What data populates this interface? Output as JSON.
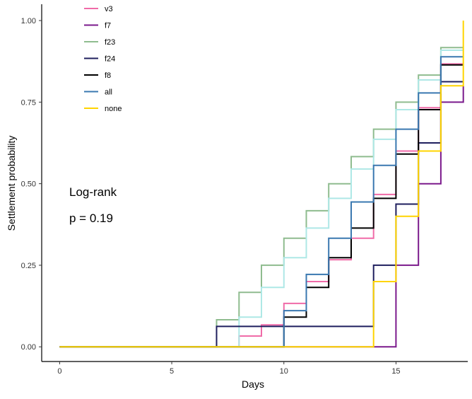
{
  "chart_data": {
    "type": "line",
    "subtype": "step",
    "xlabel": "Days",
    "ylabel": "Settlement probability",
    "xlim": [
      -0.8,
      18.2
    ],
    "ylim": [
      -0.045,
      1.05
    ],
    "xticks": [
      0,
      5,
      10,
      15
    ],
    "yticks": [
      0.0,
      0.25,
      0.5,
      0.75,
      1.0
    ],
    "xtick_labels": [
      "0",
      "5",
      "10",
      "15"
    ],
    "ytick_labels": [
      "0.00",
      "0.25",
      "0.50",
      "0.75",
      "1.00"
    ],
    "grid": false,
    "legend_position": "top-left",
    "annotations": [
      "Log-rank",
      "p = 0.19"
    ],
    "series": [
      {
        "name": "v3",
        "color": "#f06ba8",
        "x": [
          0,
          8,
          9,
          10,
          11,
          12,
          13,
          14,
          15,
          16,
          17,
          18
        ],
        "y": [
          0,
          0.033,
          0.067,
          0.133,
          0.2,
          0.267,
          0.333,
          0.467,
          0.6,
          0.733,
          0.867,
          0.867
        ]
      },
      {
        "name": "f7",
        "color": "#7b1a8c",
        "x": [
          0,
          15,
          16,
          17,
          18
        ],
        "y": [
          0,
          0.25,
          0.5,
          0.75,
          0.8
        ]
      },
      {
        "name": "f23",
        "color": "#8fbc8f",
        "x": [
          0,
          7,
          8,
          9,
          10,
          11,
          12,
          13,
          14,
          15,
          16,
          17,
          18
        ],
        "y": [
          0,
          0.083,
          0.167,
          0.25,
          0.333,
          0.417,
          0.5,
          0.583,
          0.667,
          0.75,
          0.833,
          0.917,
          0.917
        ]
      },
      {
        "name": "",
        "color": "#aee8e6",
        "x": [
          0,
          8,
          9,
          10,
          11,
          12,
          13,
          14,
          15,
          16,
          17,
          18
        ],
        "y": [
          0,
          0.091,
          0.182,
          0.273,
          0.364,
          0.455,
          0.545,
          0.636,
          0.727,
          0.818,
          0.909,
          0.909
        ]
      },
      {
        "name": "f24",
        "color": "#1f1f5e",
        "x": [
          0,
          7,
          14,
          15,
          16,
          17,
          18
        ],
        "y": [
          0,
          0.0625,
          0.25,
          0.4375,
          0.625,
          0.8125,
          0.8125
        ]
      },
      {
        "name": "f8",
        "color": "#000000",
        "x": [
          0,
          10,
          11,
          12,
          13,
          14,
          15,
          16,
          17,
          18
        ],
        "y": [
          0,
          0.091,
          0.182,
          0.273,
          0.364,
          0.455,
          0.591,
          0.727,
          0.864,
          0.864
        ]
      },
      {
        "name": "all",
        "color": "#3a78b0",
        "x": [
          0,
          10,
          11,
          12,
          13,
          14,
          15,
          16,
          17,
          18
        ],
        "y": [
          0,
          0.111,
          0.222,
          0.333,
          0.444,
          0.556,
          0.667,
          0.778,
          0.889,
          0.889
        ]
      },
      {
        "name": "none",
        "color": "#ffd400",
        "x": [
          0,
          14,
          15,
          16,
          17,
          18
        ],
        "y": [
          0,
          0.2,
          0.4,
          0.6,
          0.8,
          1.0
        ]
      }
    ]
  }
}
